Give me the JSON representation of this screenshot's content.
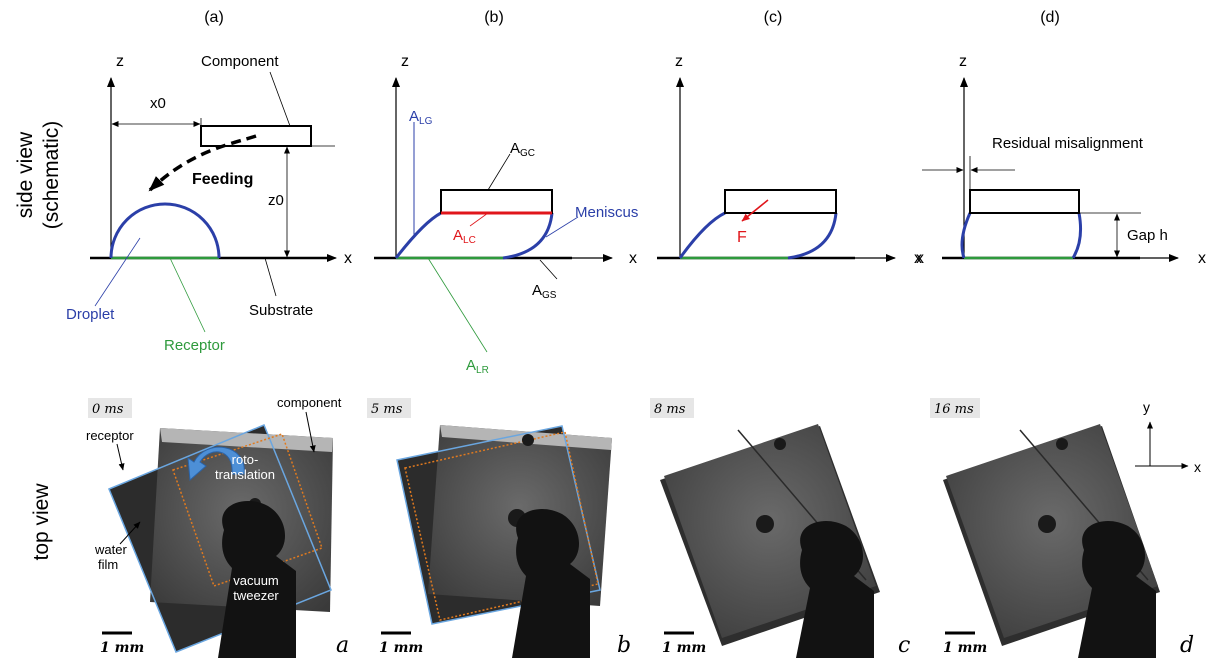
{
  "row_labels": {
    "side_line1": "side view",
    "side_line2": "(schematic)",
    "top": "top view"
  },
  "panels": {
    "a": {
      "label": "(a)",
      "z": "z",
      "x": "x",
      "x0": "x0",
      "z0": "z0",
      "component": "Component",
      "feeding": "Feeding",
      "droplet": "Droplet",
      "substrate": "Substrate",
      "receptor": "Receptor"
    },
    "b": {
      "label": "(b)",
      "z": "z",
      "x": "x",
      "alg_main": "A",
      "alg_sub": "LG",
      "agc_main": "A",
      "agc_sub": "GC",
      "alc_main": "A",
      "alc_sub": "LC",
      "ags_main": "A",
      "ags_sub": "GS",
      "alr_main": "A",
      "alr_sub": "LR",
      "meniscus": "Meniscus"
    },
    "c": {
      "label": "(c)",
      "z": "z",
      "x": "x",
      "force": "F"
    },
    "d": {
      "label": "(d)",
      "z": "z",
      "x_left": "x",
      "x_right": "x",
      "residual": "Residual misalignment",
      "gap": "Gap h"
    }
  },
  "photos": [
    {
      "time": "0 ms",
      "scale": "1 mm",
      "letter": "a",
      "component": "component",
      "receptor": "receptor",
      "roto1": "roto-",
      "roto2": "translation",
      "water1": "water",
      "water2": "film",
      "vacuum1": "vacuum",
      "vacuum2": "tweezer"
    },
    {
      "time": "5 ms",
      "scale": "1 mm",
      "letter": "b"
    },
    {
      "time": "8 ms",
      "scale": "1 mm",
      "letter": "c"
    },
    {
      "time": "16 ms",
      "scale": "1 mm",
      "letter": "d",
      "axis_y": "y",
      "axis_x": "x"
    }
  ],
  "colors": {
    "meniscus_blue": "#2b3fa8",
    "receptor_green": "#2e9a3c",
    "interface_red": "#e0161b",
    "photo_blue_outline": "#6aa6e0",
    "photo_orange_outline": "#e07a1f",
    "arrow_blue": "#4d8fd6"
  }
}
